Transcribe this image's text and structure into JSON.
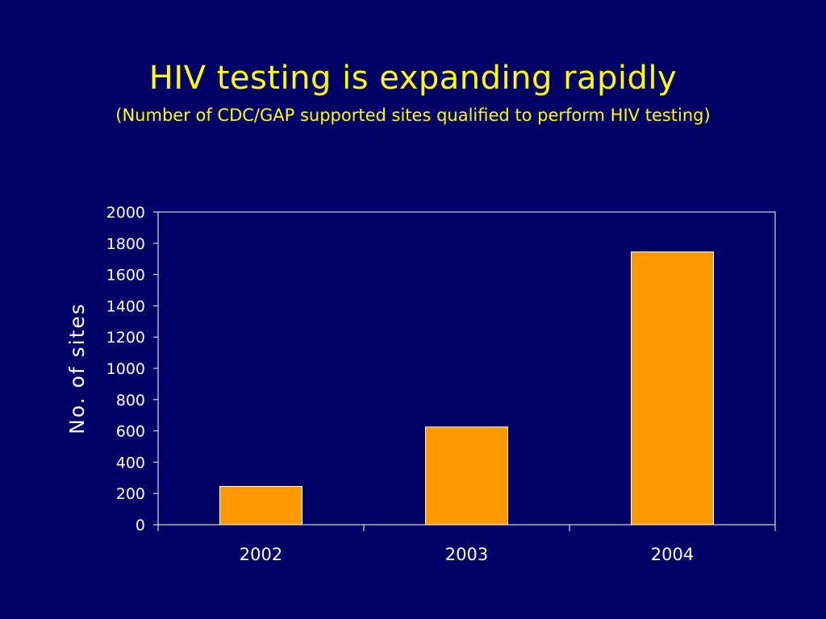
{
  "slide": {
    "title": "HIV testing is expanding rapidly",
    "subtitle": "(Number of CDC/GAP supported sites qualified to perform HIV testing)"
  },
  "colors": {
    "background": "#000066",
    "title": "#FFFF00",
    "bar": "#FF9900",
    "axis": "#FFFFFF",
    "text": "#FFFFFF"
  },
  "chart_data": {
    "type": "bar",
    "categories": [
      "2002",
      "2003",
      "2004"
    ],
    "values": [
      245,
      625,
      1745
    ],
    "xlabel": "",
    "ylabel": "No. of sites",
    "ylim": [
      0,
      2000
    ],
    "yticks": [
      0,
      200,
      400,
      600,
      800,
      1000,
      1200,
      1400,
      1600,
      1800,
      2000
    ],
    "grid": false,
    "legend": "none"
  }
}
